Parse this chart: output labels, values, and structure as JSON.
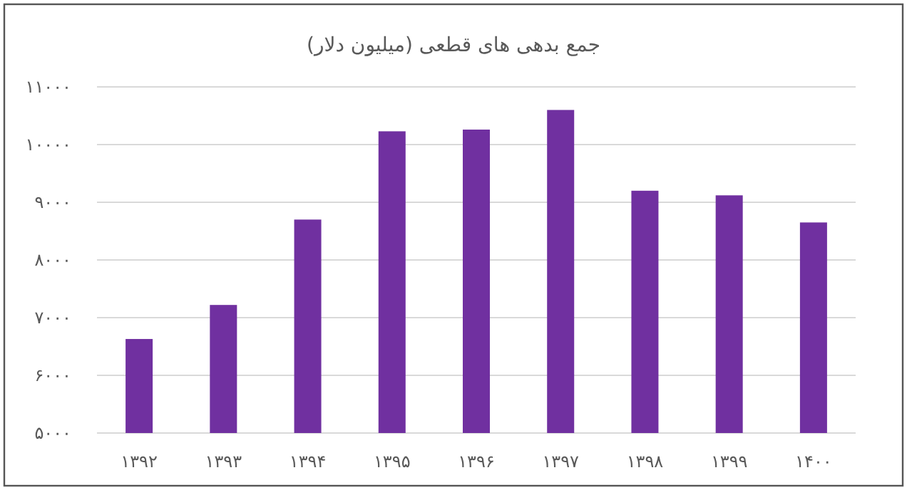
{
  "chart_data": {
    "type": "bar",
    "title": "جمع بدهی های قطعی (میلیون دلار)",
    "categories": [
      "۱۳۹۲",
      "۱۳۹۳",
      "۱۳۹۴",
      "۱۳۹۵",
      "۱۳۹۶",
      "۱۳۹۷",
      "۱۳۹۸",
      "۱۳۹۹",
      "۱۴۰۰"
    ],
    "values": [
      6630,
      7220,
      8700,
      10230,
      10260,
      10600,
      9200,
      9120,
      8650
    ],
    "color": "#7030a0",
    "ylim": [
      5000,
      11000
    ],
    "yticks": [
      {
        "value": 5000,
        "label": "۵۰۰۰"
      },
      {
        "value": 6000,
        "label": "۶۰۰۰"
      },
      {
        "value": 7000,
        "label": "۷۰۰۰"
      },
      {
        "value": 8000,
        "label": "۸۰۰۰"
      },
      {
        "value": 9000,
        "label": "۹۰۰۰"
      },
      {
        "value": 10000,
        "label": "۱۰۰۰۰"
      },
      {
        "value": 11000,
        "label": "۱۱۰۰۰"
      }
    ],
    "grid": "y"
  }
}
